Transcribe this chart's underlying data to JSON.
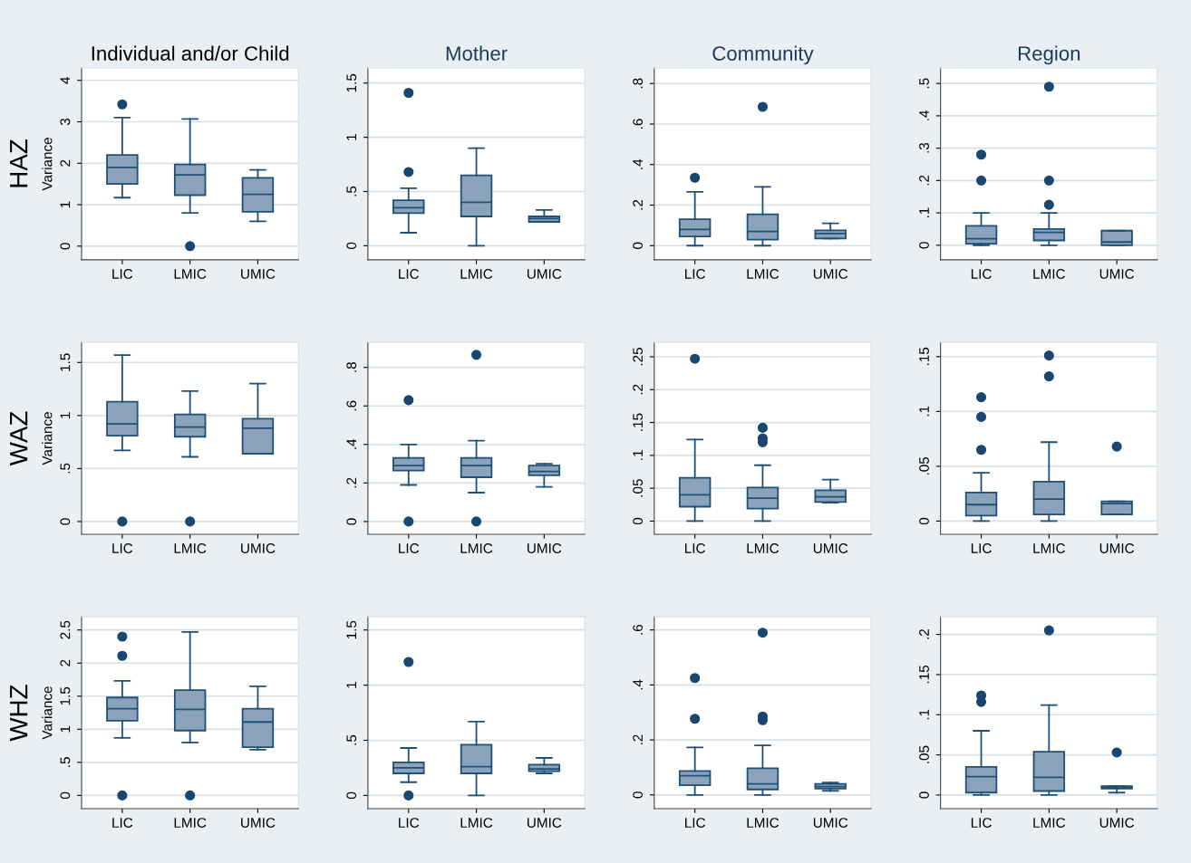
{
  "chart_data": [
    {
      "type": "box",
      "title": "Individual and/or Child",
      "ylabel": "Variance",
      "annotations": [
        "HAZ"
      ],
      "categories": [
        "LIC",
        "LMIC",
        "UMIC"
      ],
      "color": "#8aa3ba",
      "ylim": [
        -0.33,
        4.3
      ],
      "yticks": [
        0,
        1,
        2,
        3,
        4
      ],
      "grid": "y",
      "boxes": [
        {
          "low": 1.17,
          "q1": 1.5,
          "median": 1.9,
          "q3": 2.2,
          "high": 3.1,
          "outliers": [
            3.42
          ]
        },
        {
          "low": 0.8,
          "q1": 1.23,
          "median": 1.72,
          "q3": 1.97,
          "high": 3.07,
          "outliers": [
            0
          ]
        },
        {
          "low": 0.6,
          "q1": 0.83,
          "median": 1.25,
          "q3": 1.65,
          "high": 1.84
        }
      ]
    },
    {
      "type": "box",
      "title": "Mother",
      "categories": [
        "LIC",
        "LMIC",
        "UMIC"
      ],
      "color": "#8aa3ba",
      "ylim": [
        -0.13,
        1.64
      ],
      "yticks": [
        0,
        {
          "value": 0.5,
          "label": ".5"
        },
        1,
        1.5
      ],
      "grid": "y",
      "boxes": [
        {
          "low": 0.12,
          "q1": 0.3,
          "median": 0.35,
          "q3": 0.42,
          "high": 0.53,
          "outliers": [
            0.68,
            1.41
          ]
        },
        {
          "low": 0,
          "q1": 0.27,
          "median": 0.4,
          "q3": 0.65,
          "high": 0.9
        },
        {
          "low": 0.22,
          "q1": 0.22,
          "median": 0.25,
          "q3": 0.27,
          "high": 0.33
        }
      ]
    },
    {
      "type": "box",
      "title": "Community",
      "categories": [
        "LIC",
        "LMIC",
        "UMIC"
      ],
      "color": "#8aa3ba",
      "ylim": [
        -0.07,
        0.877
      ],
      "yticks": [
        0,
        {
          "value": 0.2,
          "label": ".2"
        },
        {
          "value": 0.4,
          "label": ".4"
        },
        {
          "value": 0.6,
          "label": ".6"
        },
        {
          "value": 0.8,
          "label": ".8"
        }
      ],
      "grid": "y",
      "boxes": [
        {
          "low": 0,
          "q1": 0.045,
          "median": 0.08,
          "q3": 0.13,
          "high": 0.265,
          "outliers": [
            0.335
          ]
        },
        {
          "low": 0,
          "q1": 0.03,
          "median": 0.07,
          "q3": 0.155,
          "high": 0.29,
          "outliers": [
            0.685
          ]
        },
        {
          "low": 0.035,
          "q1": 0.035,
          "median": 0.06,
          "q3": 0.075,
          "high": 0.11
        }
      ]
    },
    {
      "type": "box",
      "title": "Region",
      "categories": [
        "LIC",
        "LMIC",
        "UMIC"
      ],
      "color": "#8aa3ba",
      "ylim": [
        -0.045,
        0.548
      ],
      "yticks": [
        0,
        {
          "value": 0.1,
          "label": ".1"
        },
        {
          "value": 0.2,
          "label": ".2"
        },
        {
          "value": 0.3,
          "label": ".3"
        },
        {
          "value": 0.4,
          "label": ".4"
        },
        {
          "value": 0.5,
          "label": ".5"
        }
      ],
      "grid": "y",
      "boxes": [
        {
          "low": 0,
          "q1": 0.005,
          "median": 0.02,
          "q3": 0.06,
          "high": 0.1,
          "outliers": [
            0.2,
            0.28
          ]
        },
        {
          "low": 0,
          "q1": 0.015,
          "median": 0.04,
          "q3": 0.05,
          "high": 0.1,
          "outliers": [
            0.125,
            0.2,
            0.49
          ]
        },
        {
          "low": 0,
          "q1": 0,
          "median": 0.01,
          "q3": 0.045,
          "high": 0.045
        }
      ]
    },
    {
      "type": "box",
      "ylabel": "Variance",
      "annotations": [
        "WAZ"
      ],
      "categories": [
        "LIC",
        "LMIC",
        "UMIC"
      ],
      "color": "#8aa3ba",
      "ylim": [
        -0.12,
        1.69
      ],
      "yticks": [
        0,
        {
          "value": 0.5,
          "label": ".5"
        },
        1,
        1.5
      ],
      "grid": "y",
      "boxes": [
        {
          "low": 0.67,
          "q1": 0.81,
          "median": 0.92,
          "q3": 1.13,
          "high": 1.57,
          "outliers": [
            0
          ]
        },
        {
          "low": 0.61,
          "q1": 0.8,
          "median": 0.89,
          "q3": 1.01,
          "high": 1.23,
          "outliers": [
            0
          ]
        },
        {
          "low": 0.64,
          "q1": 0.64,
          "median": 0.88,
          "q3": 0.97,
          "high": 1.3
        }
      ]
    },
    {
      "type": "box",
      "categories": [
        "LIC",
        "LMIC",
        "UMIC"
      ],
      "color": "#8aa3ba",
      "ylim": [
        -0.066,
        0.93
      ],
      "yticks": [
        0,
        {
          "value": 0.2,
          "label": ".2"
        },
        {
          "value": 0.4,
          "label": ".4"
        },
        {
          "value": 0.6,
          "label": ".6"
        },
        {
          "value": 0.8,
          "label": ".8"
        }
      ],
      "grid": "y",
      "boxes": [
        {
          "low": 0.19,
          "q1": 0.265,
          "median": 0.29,
          "q3": 0.33,
          "high": 0.4,
          "outliers": [
            0,
            0.63
          ]
        },
        {
          "low": 0.15,
          "q1": 0.23,
          "median": 0.29,
          "q3": 0.33,
          "high": 0.42,
          "outliers": [
            0,
            0.865
          ]
        },
        {
          "low": 0.18,
          "q1": 0.24,
          "median": 0.26,
          "q3": 0.29,
          "high": 0.3
        }
      ]
    },
    {
      "type": "box",
      "categories": [
        "LIC",
        "LMIC",
        "UMIC"
      ],
      "color": "#8aa3ba",
      "ylim": [
        -0.02,
        0.272
      ],
      "yticks": [
        0,
        {
          "value": 0.05,
          "label": ".05"
        },
        {
          "value": 0.1,
          "label": ".1"
        },
        {
          "value": 0.15,
          "label": ".15"
        },
        {
          "value": 0.2,
          "label": ".2"
        },
        {
          "value": 0.25,
          "label": ".25"
        }
      ],
      "grid": "y",
      "boxes": [
        {
          "low": 0,
          "q1": 0.022,
          "median": 0.04,
          "q3": 0.066,
          "high": 0.124,
          "outliers": [
            0.247
          ]
        },
        {
          "low": 0,
          "q1": 0.019,
          "median": 0.035,
          "q3": 0.051,
          "high": 0.085,
          "outliers": [
            0.12,
            0.126,
            0.142
          ]
        },
        {
          "low": 0.028,
          "q1": 0.029,
          "median": 0.037,
          "q3": 0.047,
          "high": 0.063
        }
      ]
    },
    {
      "type": "box",
      "categories": [
        "LIC",
        "LMIC",
        "UMIC"
      ],
      "color": "#8aa3ba",
      "ylim": [
        -0.012,
        0.163
      ],
      "yticks": [
        0,
        {
          "value": 0.05,
          "label": ".05"
        },
        {
          "value": 0.1,
          "label": ".1"
        },
        {
          "value": 0.15,
          "label": ".15"
        }
      ],
      "grid": "y",
      "boxes": [
        {
          "low": 0,
          "q1": 0.005,
          "median": 0.015,
          "q3": 0.026,
          "high": 0.044,
          "outliers": [
            0.065,
            0.095,
            0.113
          ]
        },
        {
          "low": 0,
          "q1": 0.006,
          "median": 0.02,
          "q3": 0.036,
          "high": 0.072,
          "outliers": [
            0.132,
            0.151
          ]
        },
        {
          "low": 0.006,
          "q1": 0.006,
          "median": 0.016,
          "q3": 0.018,
          "high": 0.018,
          "outliers": [
            0.068
          ]
        }
      ]
    },
    {
      "type": "box",
      "ylabel": "Variance",
      "annotations": [
        "WHZ"
      ],
      "categories": [
        "LIC",
        "LMIC",
        "UMIC"
      ],
      "color": "#8aa3ba",
      "ylim": [
        -0.2,
        2.7
      ],
      "yticks": [
        0,
        {
          "value": 0.5,
          "label": ".5"
        },
        1,
        1.5,
        2,
        2.5
      ],
      "grid": "y",
      "boxes": [
        {
          "low": 0.87,
          "q1": 1.13,
          "median": 1.31,
          "q3": 1.48,
          "high": 1.73,
          "outliers": [
            0,
            2.11,
            2.4
          ]
        },
        {
          "low": 0.8,
          "q1": 0.98,
          "median": 1.3,
          "q3": 1.59,
          "high": 2.47,
          "outliers": [
            0
          ]
        },
        {
          "low": 0.69,
          "q1": 0.73,
          "median": 1.11,
          "q3": 1.31,
          "high": 1.65
        }
      ]
    },
    {
      "type": "box",
      "categories": [
        "LIC",
        "LMIC",
        "UMIC"
      ],
      "color": "#8aa3ba",
      "ylim": [
        -0.12,
        1.62
      ],
      "yticks": [
        0,
        {
          "value": 0.5,
          "label": ".5"
        },
        1,
        1.5
      ],
      "grid": "y",
      "boxes": [
        {
          "low": 0.12,
          "q1": 0.2,
          "median": 0.25,
          "q3": 0.3,
          "high": 0.43,
          "outliers": [
            0,
            1.21
          ]
        },
        {
          "low": 0,
          "q1": 0.2,
          "median": 0.26,
          "q3": 0.46,
          "high": 0.67
        },
        {
          "low": 0.2,
          "q1": 0.22,
          "median": 0.24,
          "q3": 0.28,
          "high": 0.34
        }
      ]
    },
    {
      "type": "box",
      "categories": [
        "LIC",
        "LMIC",
        "UMIC"
      ],
      "color": "#8aa3ba",
      "ylim": [
        -0.05,
        0.648
      ],
      "yticks": [
        0,
        {
          "value": 0.2,
          "label": ".2"
        },
        {
          "value": 0.4,
          "label": ".4"
        },
        {
          "value": 0.6,
          "label": ".6"
        }
      ],
      "grid": "y",
      "boxes": [
        {
          "low": 0,
          "q1": 0.035,
          "median": 0.07,
          "q3": 0.087,
          "high": 0.173,
          "outliers": [
            0.277,
            0.425
          ]
        },
        {
          "low": 0,
          "q1": 0.02,
          "median": 0.04,
          "q3": 0.097,
          "high": 0.18,
          "outliers": [
            0.272,
            0.285,
            0.59
          ]
        },
        {
          "low": 0.015,
          "q1": 0.023,
          "median": 0.03,
          "q3": 0.04,
          "high": 0.045
        }
      ]
    },
    {
      "type": "box",
      "categories": [
        "LIC",
        "LMIC",
        "UMIC"
      ],
      "color": "#8aa3ba",
      "ylim": [
        -0.017,
        0.222
      ],
      "yticks": [
        0,
        {
          "value": 0.05,
          "label": ".05"
        },
        {
          "value": 0.1,
          "label": ".1"
        },
        {
          "value": 0.15,
          "label": ".15"
        },
        {
          "value": 0.2,
          "label": ".2"
        }
      ],
      "grid": "y",
      "boxes": [
        {
          "low": 0,
          "q1": 0.003,
          "median": 0.023,
          "q3": 0.035,
          "high": 0.08,
          "outliers": [
            0.116,
            0.124
          ]
        },
        {
          "low": 0,
          "q1": 0.005,
          "median": 0.022,
          "q3": 0.054,
          "high": 0.112,
          "outliers": [
            0.205
          ]
        },
        {
          "low": 0.003,
          "q1": 0.008,
          "median": 0.01,
          "q3": 0.011,
          "high": 0.011,
          "outliers": [
            0.053
          ]
        }
      ]
    }
  ]
}
